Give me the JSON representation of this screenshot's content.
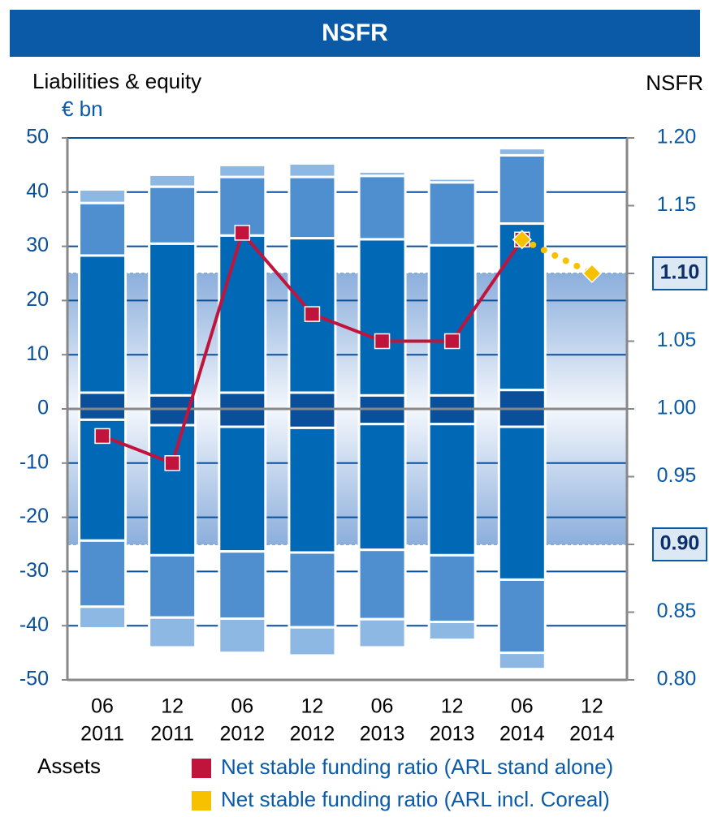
{
  "chart_data": {
    "type": "bar",
    "title": "NSFR",
    "y_label": "Liabilities & equity",
    "y_unit": "€ bn",
    "y2_label": "NSFR",
    "bottom_label": "Assets",
    "categories": [
      [
        "06",
        "2011"
      ],
      [
        "12",
        "2011"
      ],
      [
        "06",
        "2012"
      ],
      [
        "12",
        "2012"
      ],
      [
        "06",
        "2013"
      ],
      [
        "12",
        "2013"
      ],
      [
        "06",
        "2014"
      ],
      [
        "12",
        "2014"
      ]
    ],
    "ylim": [
      -50,
      50
    ],
    "yticks": [
      -50,
      -40,
      -30,
      -20,
      -10,
      0,
      10,
      20,
      30,
      40,
      50
    ],
    "y2lim": [
      0.8,
      1.2
    ],
    "y2ticks": [
      {
        "value": 0.8,
        "label": "0.80"
      },
      0.85,
      {
        "value": 0.9,
        "label": "0.90"
      },
      0.95,
      {
        "value": 1.0,
        "label": "1.00"
      },
      1.05,
      {
        "value": 1.1,
        "label": "1.10"
      },
      1.15,
      {
        "value": 1.2,
        "label": "1.20"
      }
    ],
    "y2_band": [
      0.9,
      1.1
    ],
    "grid": true,
    "bar_series": [
      {
        "color": "#0a4f9a",
        "values": [
          3,
          2.5,
          3,
          3,
          2.5,
          2.5,
          3.5,
          null
        ]
      },
      {
        "color": "#0068b4",
        "values": [
          25.3,
          28,
          29,
          28.5,
          28.8,
          27.7,
          30.7,
          null
        ]
      },
      {
        "color": "#4f8fcf",
        "values": [
          9.7,
          10.5,
          10.8,
          11.3,
          11.7,
          11.6,
          12.6,
          null
        ]
      },
      {
        "color": "#8db8e3",
        "values": [
          2.5,
          2.2,
          2.2,
          2.5,
          0.8,
          0.7,
          1.3,
          null
        ]
      },
      {
        "color": "#0a4f9a",
        "values": [
          -2,
          -3,
          -3.3,
          -3.5,
          -2.8,
          -2.8,
          -3.3,
          null
        ]
      },
      {
        "color": "#0068b4",
        "values": [
          -22.3,
          -24,
          -23,
          -23,
          -23.2,
          -24.2,
          -28.2,
          null
        ]
      },
      {
        "color": "#4f8fcf",
        "values": [
          -12.2,
          -11.5,
          -12.4,
          -13.8,
          -12.8,
          -12.3,
          -13.5,
          null
        ]
      },
      {
        "color": "#8db8e3",
        "values": [
          -4,
          -5.5,
          -6.3,
          -5.2,
          -5.2,
          -3.3,
          -3,
          null
        ]
      }
    ],
    "series": [
      {
        "name": "Net stable funding ratio (ARL stand alone)",
        "color": "#c0143c",
        "axis": "y2",
        "style": "solid",
        "marker": "square",
        "values": [
          0.98,
          0.96,
          1.13,
          1.07,
          1.05,
          1.05,
          1.125,
          null
        ]
      },
      {
        "name": "Net stable funding ratio (ARL incl. Coreal)",
        "color": "#f7c100",
        "axis": "y2",
        "style": "dotted",
        "marker": "diamond",
        "values": [
          null,
          null,
          null,
          null,
          null,
          null,
          1.125,
          1.1
        ]
      }
    ]
  }
}
